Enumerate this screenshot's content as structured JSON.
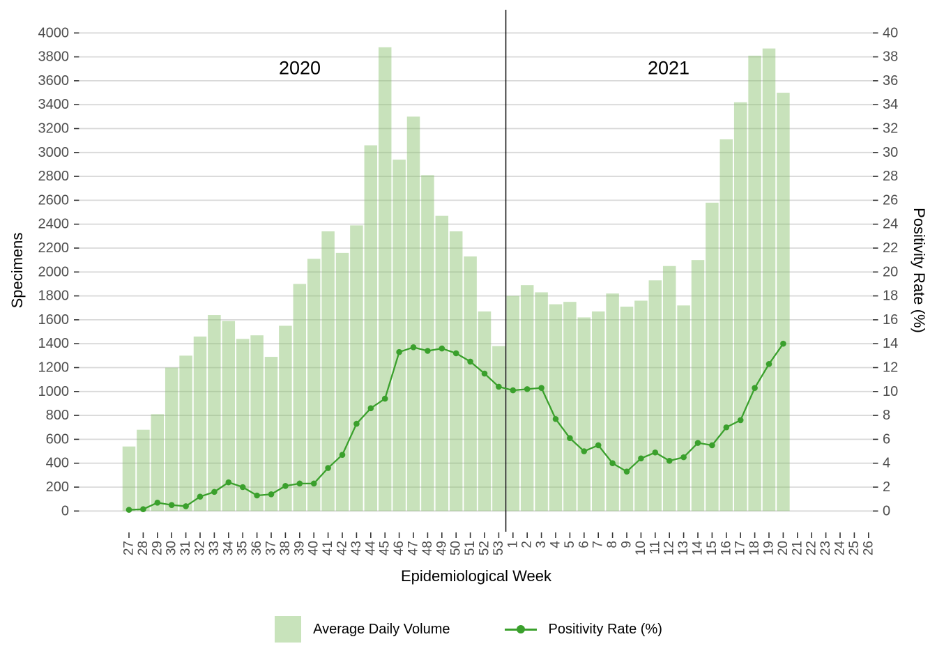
{
  "chart_data": {
    "type": "bar+line",
    "x_axis": {
      "label": "Epidemiological Week",
      "tick_labels": [
        "27",
        "28",
        "29",
        "30",
        "31",
        "32",
        "33",
        "34",
        "35",
        "36",
        "37",
        "38",
        "39",
        "40",
        "41",
        "42",
        "43",
        "44",
        "45",
        "46",
        "47",
        "48",
        "49",
        "50",
        "51",
        "52",
        "53",
        "1",
        "2",
        "3",
        "4",
        "5",
        "6",
        "7",
        "8",
        "9",
        "10",
        "11",
        "12",
        "13",
        "14",
        "15",
        "16",
        "17",
        "18",
        "19",
        "20",
        "21",
        "22",
        "23",
        "24",
        "25",
        "26"
      ]
    },
    "left_axis": {
      "label": "Specimens",
      "min": 0,
      "max": 4000,
      "tick_step": 200,
      "tick_labels": [
        "0",
        "200",
        "400",
        "600",
        "800",
        "1000",
        "1200",
        "1400",
        "1600",
        "1800",
        "2000",
        "2200",
        "2400",
        "2600",
        "2800",
        "3000",
        "3200",
        "3400",
        "3600",
        "3800",
        "4000"
      ]
    },
    "right_axis": {
      "label": "Positivity Rate (%)",
      "min": 0,
      "max": 40,
      "tick_step": 2,
      "tick_labels": [
        "0",
        "2",
        "4",
        "6",
        "8",
        "10",
        "12",
        "14",
        "16",
        "18",
        "20",
        "22",
        "24",
        "26",
        "28",
        "30",
        "32",
        "34",
        "36",
        "38",
        "40"
      ]
    },
    "year_labels": [
      "2020",
      "2021"
    ],
    "separator_after_index": 26,
    "grid": "horizontal-major-only",
    "legend_position": "bottom",
    "series": [
      {
        "name": "Average Daily Volume",
        "type": "bar",
        "axis": "left",
        "values": [
          540,
          680,
          810,
          1200,
          1300,
          1460,
          1640,
          1590,
          1440,
          1470,
          1290,
          1550,
          1900,
          2110,
          2340,
          2160,
          2390,
          3060,
          3880,
          2940,
          3300,
          2810,
          2470,
          2340,
          2130,
          1670,
          1380,
          1800,
          1890,
          1830,
          1730,
          1750,
          1620,
          1670,
          1820,
          1710,
          1760,
          1930,
          2050,
          1720,
          2100,
          2580,
          3110,
          3420,
          3810,
          3870,
          3500,
          null,
          null,
          null,
          null,
          null,
          null
        ]
      },
      {
        "name": "Positivity Rate (%)",
        "type": "line",
        "axis": "right",
        "values": [
          0.1,
          0.15,
          0.7,
          0.5,
          0.4,
          1.2,
          1.6,
          2.4,
          2.0,
          1.3,
          1.4,
          2.1,
          2.3,
          2.3,
          3.6,
          4.7,
          7.3,
          8.6,
          9.4,
          13.3,
          13.7,
          13.4,
          13.6,
          13.2,
          12.5,
          11.5,
          10.4,
          10.1,
          10.2,
          10.3,
          7.7,
          6.1,
          5.0,
          5.5,
          4.0,
          3.3,
          4.4,
          4.9,
          4.2,
          4.5,
          5.7,
          5.5,
          7.0,
          7.6,
          10.3,
          12.3,
          14.0,
          null,
          null,
          null,
          null,
          null,
          null
        ]
      }
    ],
    "colors": {
      "bar_fill": "#c8e3bb",
      "bar_fill_translucent": "rgba(130,190,100,0.44)",
      "line_color": "#3aa02c",
      "gridline_color": "#d9d9d9",
      "tick_mark_color": "#333333",
      "axis_text_color": "#4d4d4d",
      "separator_color": "#000000"
    }
  }
}
